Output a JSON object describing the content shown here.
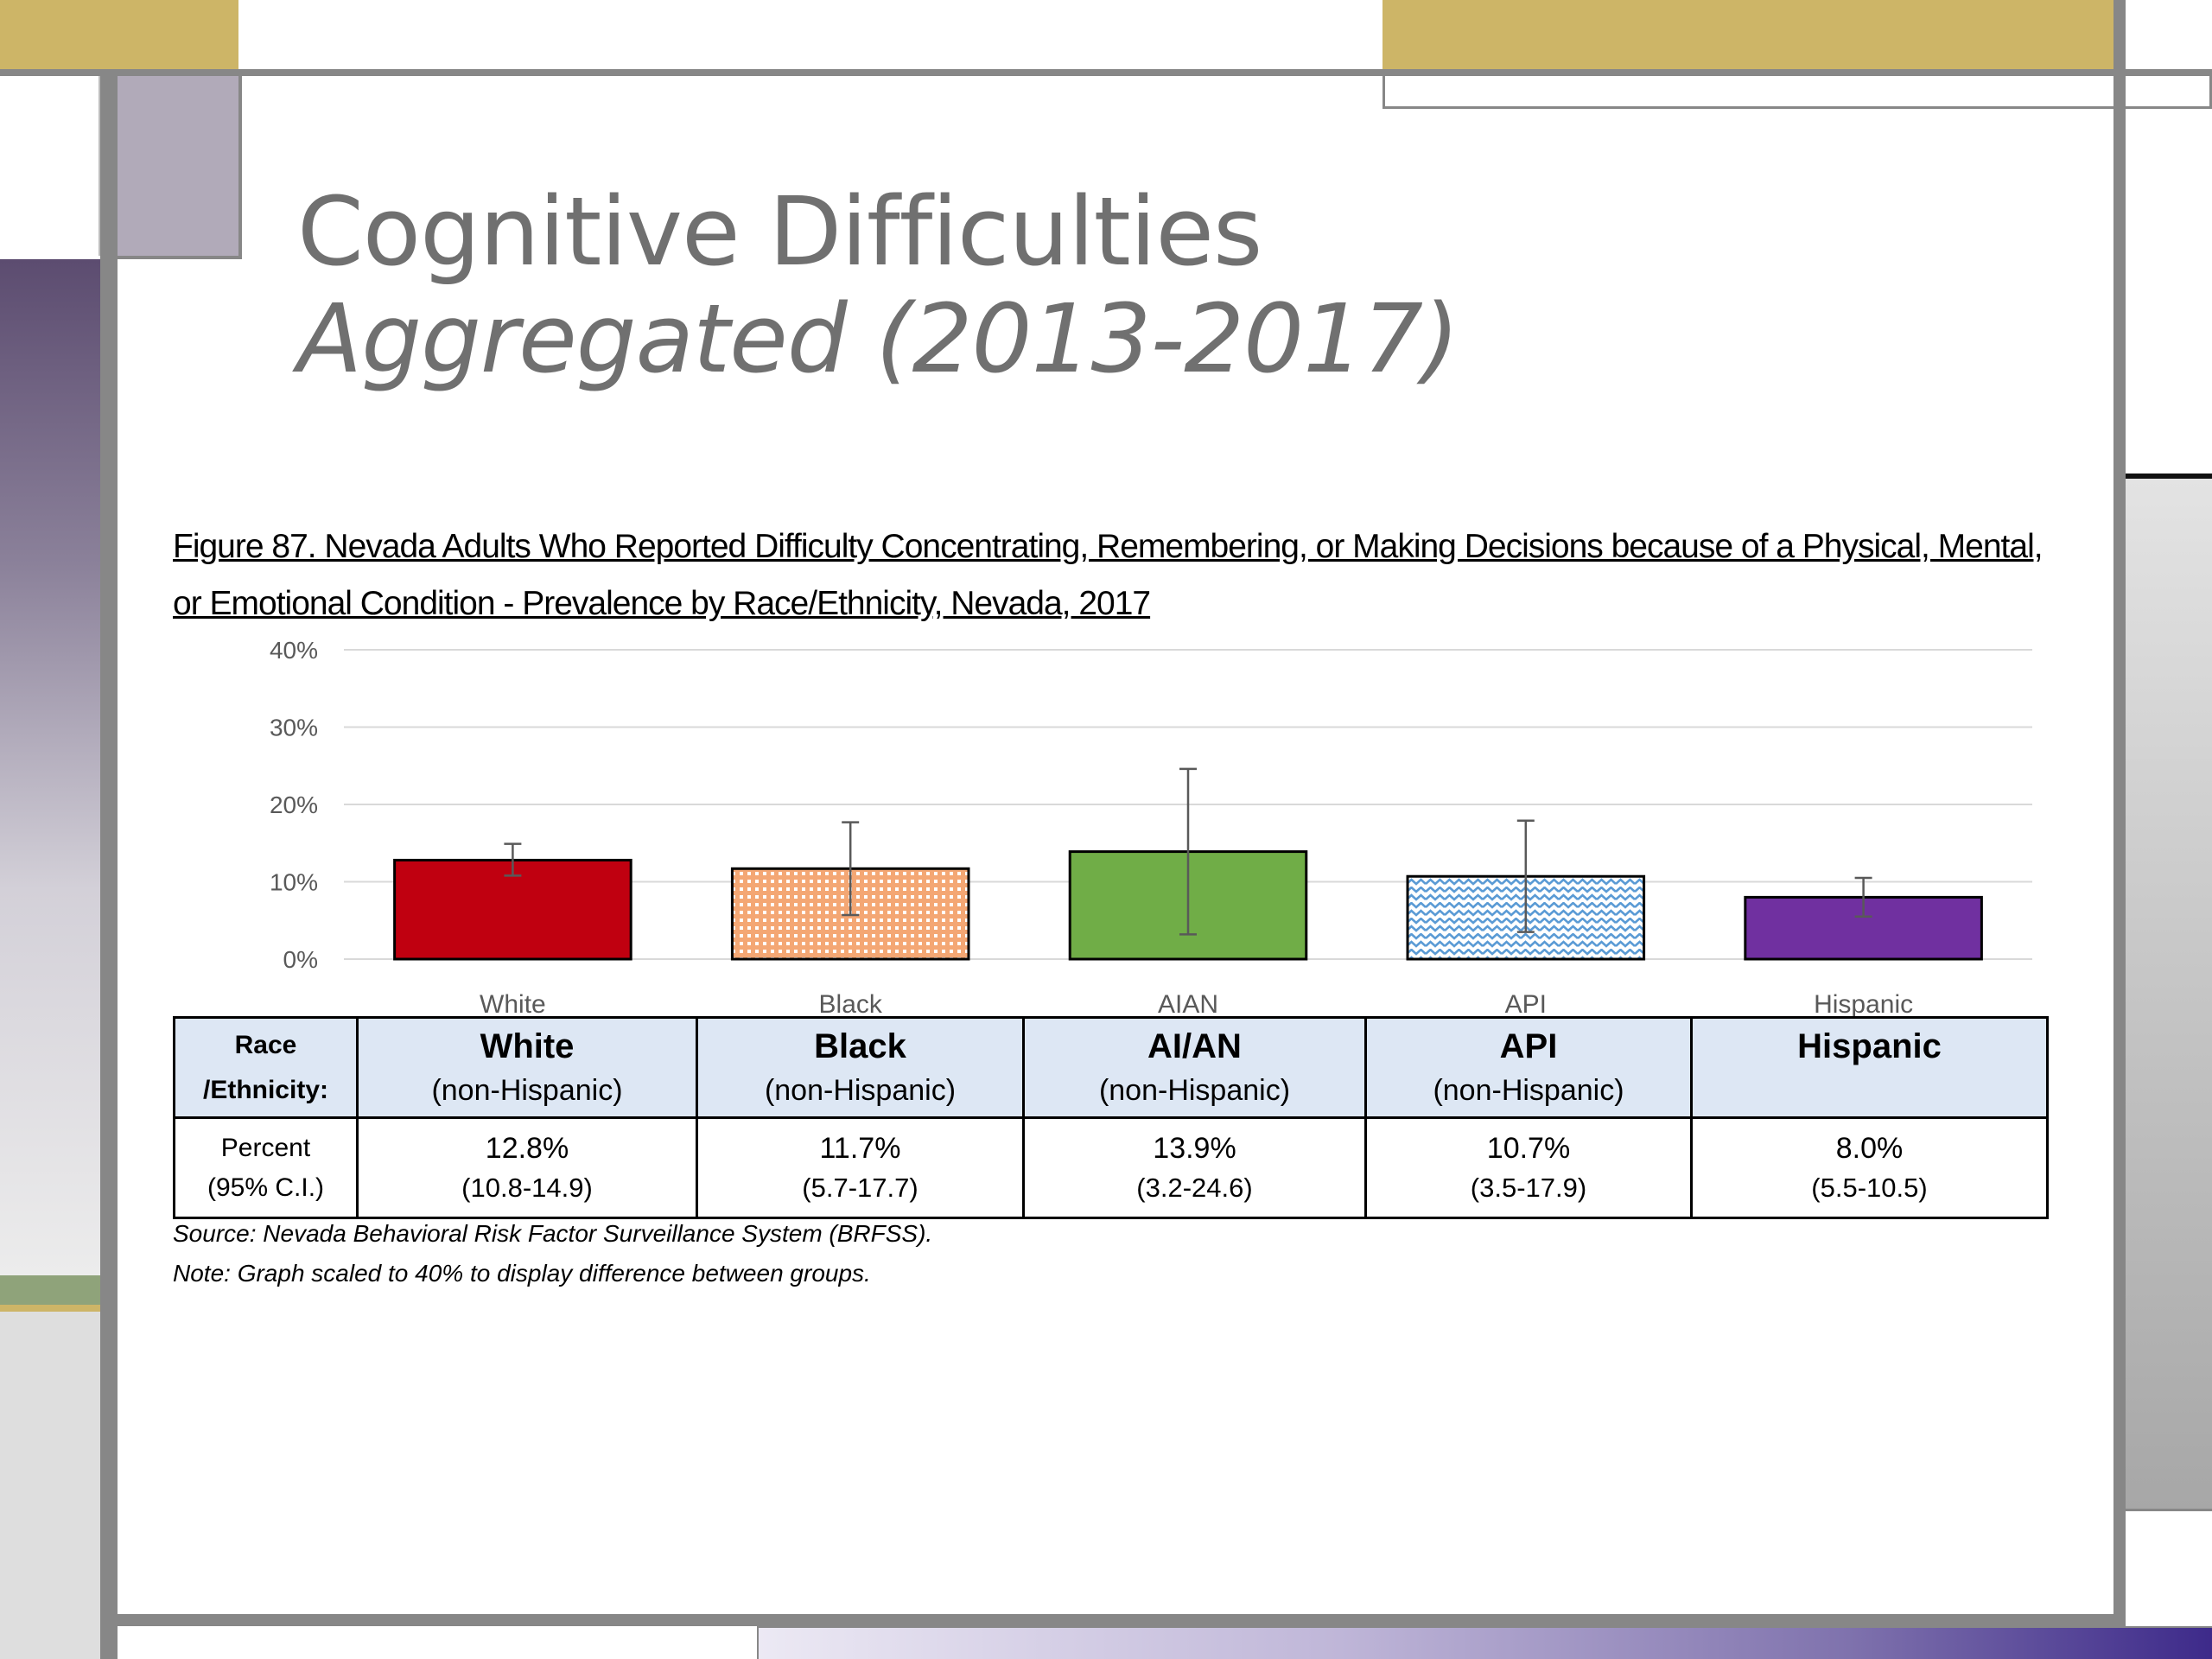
{
  "slide": {
    "title_line1": "Cognitive Difficulties",
    "title_line2": "Aggregated (2013-2017)"
  },
  "figure": {
    "caption": "Figure 87. Nevada Adults Who Reported Difficulty Concentrating, Remembering, or Making Decisions because of a Physical, Mental, or Emotional Condition - Prevalence by Race/Ethnicity, Nevada, 2017",
    "source": "Source: Nevada Behavioral Risk Factor Surveillance System (BRFSS).",
    "note": "Note: Graph scaled to 40% to display difference between groups."
  },
  "chart_data": {
    "type": "bar",
    "categories": [
      "White",
      "Black",
      "AIAN",
      "API",
      "Hispanic"
    ],
    "values": [
      12.8,
      11.7,
      13.9,
      10.7,
      8.0
    ],
    "ci_low": [
      10.8,
      5.7,
      3.2,
      3.5,
      5.5
    ],
    "ci_high": [
      14.9,
      17.7,
      24.6,
      17.9,
      10.5
    ],
    "y_ticks": [
      "0%",
      "10%",
      "20%",
      "30%",
      "40%"
    ],
    "ylim": [
      0,
      40
    ],
    "grid": true,
    "bar_colors": [
      "#c00010",
      "#f4a774",
      "#70ad47",
      "#7fb1de",
      "#7030a0"
    ],
    "bar_patterns": [
      "solid",
      "dots",
      "solid",
      "waves",
      "solid"
    ]
  },
  "table": {
    "header_label_line1": "Race",
    "header_label_line2": "/Ethnicity:",
    "value_label_line1": "Percent",
    "value_label_line2": "(95% C.I.)",
    "columns": [
      {
        "group": "White",
        "sub": "(non-Hispanic)",
        "percent": "12.8%",
        "ci": "(10.8-14.9)"
      },
      {
        "group": "Black",
        "sub": "(non-Hispanic)",
        "percent": "11.7%",
        "ci": "(5.7-17.7)"
      },
      {
        "group": "AI/AN",
        "sub": "(non-Hispanic)",
        "percent": "13.9%",
        "ci": "(3.2-24.6)"
      },
      {
        "group": "API",
        "sub": "(non-Hispanic)",
        "percent": "10.7%",
        "ci": "(3.5-17.9)"
      },
      {
        "group": "Hispanic",
        "sub": "",
        "percent": "8.0%",
        "ci": "(5.5-10.5)"
      }
    ]
  }
}
